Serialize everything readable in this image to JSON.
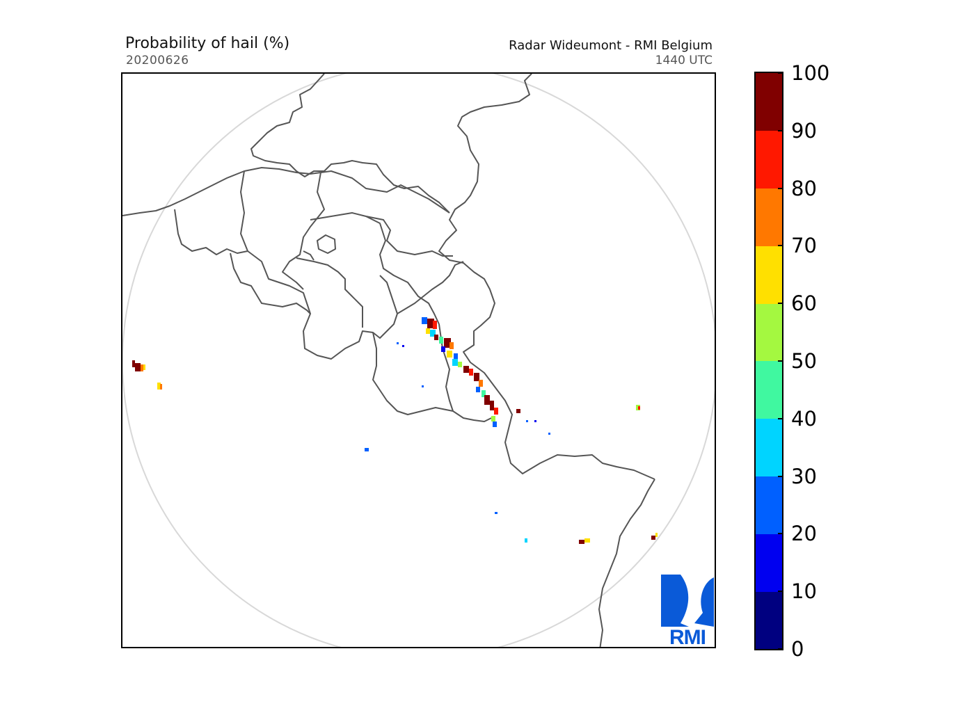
{
  "header": {
    "title": "Probability of hail (%)",
    "date": "20200626",
    "radar_name": "Radar Wideumont - RMI Belgium",
    "time": "1440 UTC"
  },
  "map": {
    "range_ring_color": "#d8d8d8",
    "border_color": "#555555",
    "background": "#ffffff"
  },
  "colorbar": {
    "ticks": [
      "0",
      "10",
      "20",
      "30",
      "40",
      "50",
      "60",
      "70",
      "80",
      "90",
      "100"
    ],
    "colors": [
      "#000080",
      "#0000f0",
      "#0060ff",
      "#00d4ff",
      "#40f8a0",
      "#a4f840",
      "#ffe000",
      "#ff7800",
      "#ff1800",
      "#800000"
    ]
  },
  "logo": {
    "text": "RMI",
    "color": "#0a5ad8",
    "icon": "rmi-logo-icon"
  }
}
